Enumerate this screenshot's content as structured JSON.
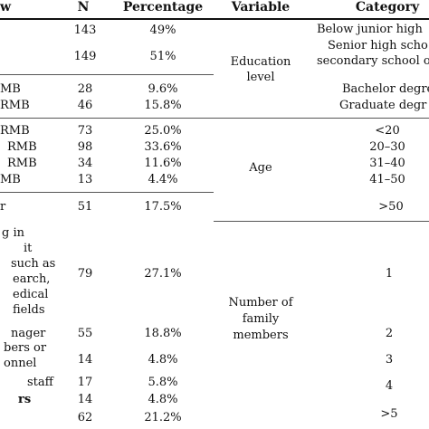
{
  "headers": {
    "variable_left": "w",
    "n": "N",
    "percentage": "Percentage",
    "variable": "Variable",
    "category": "Category"
  },
  "left_rows": [
    {
      "label": "",
      "n": "143",
      "pct": "49%"
    },
    {
      "label": "",
      "n": "149",
      "pct": "51%"
    },
    {
      "label": "MB",
      "n": "28",
      "pct": "9.6%"
    },
    {
      "label": "RMB",
      "n": "46",
      "pct": "15.8%"
    },
    {
      "label": "RMB",
      "n": "73",
      "pct": "25.0%"
    },
    {
      "label": "RMB",
      "n": "98",
      "pct": "33.6%"
    },
    {
      "label": "RMB",
      "n": "34",
      "pct": "11.6%"
    },
    {
      "label": "MB",
      "n": "13",
      "pct": "4.4%"
    },
    {
      "label": "r",
      "n": "51",
      "pct": "17.5%"
    },
    {
      "label": "g in",
      "n": "",
      "pct": ""
    },
    {
      "label": "it",
      "n": "",
      "pct": ""
    },
    {
      "label": "such as",
      "n": "",
      "pct": ""
    },
    {
      "label": "earch,",
      "n": "79",
      "pct": "27.1%"
    },
    {
      "label": "edical",
      "n": "",
      "pct": ""
    },
    {
      "label": "fields",
      "n": "",
      "pct": ""
    },
    {
      "label": "nager",
      "n": "55",
      "pct": "18.8%"
    },
    {
      "label": "bers or",
      "n": "",
      "pct": ""
    },
    {
      "label": "onnel",
      "n": "14",
      "pct": "4.8%"
    },
    {
      "label": "staff",
      "n": "17",
      "pct": "5.8%"
    },
    {
      "label": "rs",
      "n": "14",
      "pct": "4.8%"
    },
    {
      "label": "",
      "n": "62",
      "pct": "21.2%"
    }
  ],
  "right_groups": {
    "education": {
      "var1": "Education",
      "var2": "level",
      "cats": [
        "Below junior high",
        "Senior high scho",
        "secondary school o",
        "Bachelor degre",
        "Graduate degr"
      ]
    },
    "age": {
      "var": "Age",
      "cats": [
        "<20",
        "20–30",
        "31–40",
        "41–50",
        ">50"
      ]
    },
    "family": {
      "var1": "Number of",
      "var2": "family",
      "var3": "members",
      "cats": [
        "1",
        "2",
        "3",
        "4",
        ">5"
      ]
    }
  }
}
